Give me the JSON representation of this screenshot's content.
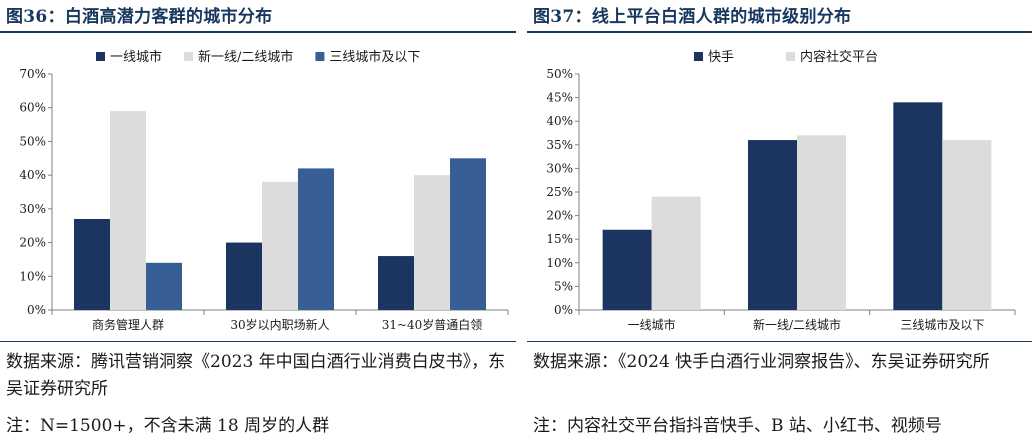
{
  "left": {
    "title": "图36：白酒高潜力客群的城市分布",
    "source": "数据来源：腾讯营销洞察《2023 年中国白酒行业消费白皮书》，东吴证券研究所",
    "note": "注：N=1500+，不含未满 18 周岁的人群"
  },
  "right": {
    "title": "图37：线上平台白酒人群的城市级别分布",
    "source": "数据来源：《2024 快手白酒行业洞察报告》、东吴证券研究所",
    "note": "注：内容社交平台指抖音快手、B 站、小红书、视频号"
  },
  "colors": {
    "navy": "#1b3560",
    "lightgray": "#dcdcdc",
    "steelblue": "#375f96",
    "rule": "#17375e"
  },
  "chart_data": [
    {
      "type": "bar",
      "categories": [
        "商务管理人群",
        "30岁以内职场新人",
        "31~40岁普通白领"
      ],
      "series": [
        {
          "name": "一线城市",
          "values": [
            27,
            20,
            16
          ],
          "color": "#1b3560"
        },
        {
          "name": "新一线/二线城市",
          "values": [
            59,
            38,
            40
          ],
          "color": "#dcdcdc"
        },
        {
          "name": "三线城市及以下",
          "values": [
            14,
            42,
            45
          ],
          "color": "#375f96"
        }
      ],
      "ylim": [
        0,
        70
      ],
      "yticks": [
        "0%",
        "10%",
        "20%",
        "30%",
        "40%",
        "50%",
        "60%",
        "70%"
      ],
      "legend": "top"
    },
    {
      "type": "bar",
      "categories": [
        "一线城市",
        "新一线/二线城市",
        "三线城市及以下"
      ],
      "series": [
        {
          "name": "快手",
          "values": [
            17,
            36,
            44
          ],
          "color": "#1b3560"
        },
        {
          "name": "内容社交平台",
          "values": [
            24,
            37,
            36
          ],
          "color": "#dcdcdc"
        }
      ],
      "ylim": [
        0,
        50
      ],
      "yticks": [
        "0%",
        "5%",
        "10%",
        "15%",
        "20%",
        "25%",
        "30%",
        "35%",
        "40%",
        "45%",
        "50%"
      ],
      "legend": "top"
    }
  ]
}
